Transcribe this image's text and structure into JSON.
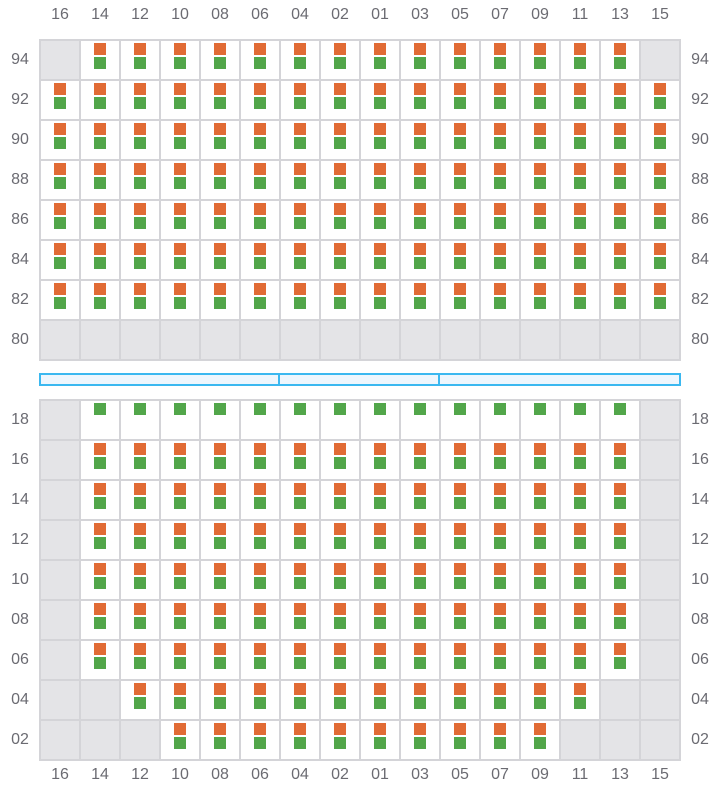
{
  "columns": [
    "16",
    "14",
    "12",
    "10",
    "08",
    "06",
    "04",
    "02",
    "01",
    "03",
    "05",
    "07",
    "09",
    "11",
    "13",
    "15"
  ],
  "top_section": {
    "rows": [
      {
        "label": "94",
        "cells": "GBBBBBBBBBBBBBBG"
      },
      {
        "label": "92",
        "cells": "BBBBBBBBBBBBBBBB"
      },
      {
        "label": "90",
        "cells": "BBBBBBBBBBBBBBBB"
      },
      {
        "label": "88",
        "cells": "BBBBBBBBBBBBBBBB"
      },
      {
        "label": "86",
        "cells": "BBBBBBBBBBBBBBBB"
      },
      {
        "label": "84",
        "cells": "BBBBBBBBBBBBBBBB"
      },
      {
        "label": "82",
        "cells": "BBBBBBBBBBBBBBBB"
      },
      {
        "label": "80",
        "cells": "GGGGGGGGGGGGGGGG"
      }
    ]
  },
  "bottom_section": {
    "rows": [
      {
        "label": "18",
        "cells": "GggggggggggggggG"
      },
      {
        "label": "16",
        "cells": "GBBBBBBBBBBBBBBG"
      },
      {
        "label": "14",
        "cells": "GBBBBBBBBBBBBBBG"
      },
      {
        "label": "12",
        "cells": "GBBBBBBBBBBBBBBG"
      },
      {
        "label": "10",
        "cells": "GBBBBBBBBBBBBBBG"
      },
      {
        "label": "08",
        "cells": "GBBBBBBBBBBBBBBG"
      },
      {
        "label": "06",
        "cells": "GBBBBBBBBBBBBBBG"
      },
      {
        "label": "04",
        "cells": "GGBBBBBBBBBBBBGG"
      },
      {
        "label": "02",
        "cells": "GGGBBBBBBBBBBGGG"
      }
    ]
  },
  "legend_codes": {
    "G": "unavailable",
    "B": "orange and green markers",
    "g": "green marker only"
  },
  "colors": {
    "orange": "#e16b35",
    "green": "#52a64a",
    "unavailable": "#e4e4e7",
    "divider": "#3bb8f0"
  }
}
